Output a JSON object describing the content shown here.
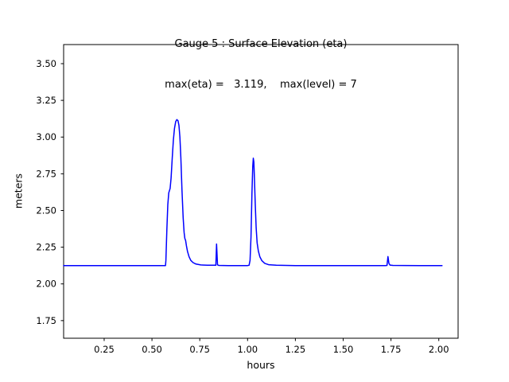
{
  "chart_data": {
    "type": "line",
    "title": "Gauge 5 : Surface Elevation (eta)",
    "subtitle": "max(eta) =   3.119,    max(level) = 7",
    "xlabel": "hours",
    "ylabel": "meters",
    "xlim": [
      0.038,
      2.101
    ],
    "ylim": [
      1.63,
      3.63
    ],
    "grid": false,
    "legend": null,
    "x_ticks": [
      {
        "value": 0.25,
        "label": "0.25"
      },
      {
        "value": 0.5,
        "label": "0.50"
      },
      {
        "value": 0.75,
        "label": "0.75"
      },
      {
        "value": 1.0,
        "label": "1.00"
      },
      {
        "value": 1.25,
        "label": "1.25"
      },
      {
        "value": 1.5,
        "label": "1.50"
      },
      {
        "value": 1.75,
        "label": "1.75"
      },
      {
        "value": 2.0,
        "label": "2.00"
      }
    ],
    "y_ticks": [
      {
        "value": 1.75,
        "label": "1.75"
      },
      {
        "value": 2.0,
        "label": "2.00"
      },
      {
        "value": 2.25,
        "label": "2.25"
      },
      {
        "value": 2.5,
        "label": "2.50"
      },
      {
        "value": 2.75,
        "label": "2.75"
      },
      {
        "value": 3.0,
        "label": "3.00"
      },
      {
        "value": 3.25,
        "label": "3.25"
      },
      {
        "value": 3.5,
        "label": "3.50"
      }
    ],
    "annotations": {
      "max_eta": 3.119,
      "max_level": 7,
      "baseline_meters": 2.125
    },
    "series": [
      {
        "name": "eta",
        "color": "#0000ff",
        "line_width": 1.5,
        "points": [
          [
            0.038,
            2.125
          ],
          [
            0.3,
            2.125
          ],
          [
            0.56,
            2.125
          ],
          [
            0.571,
            2.125
          ],
          [
            0.573,
            2.16
          ],
          [
            0.578,
            2.37
          ],
          [
            0.583,
            2.54
          ],
          [
            0.588,
            2.62
          ],
          [
            0.595,
            2.65
          ],
          [
            0.6,
            2.72
          ],
          [
            0.606,
            2.86
          ],
          [
            0.612,
            2.98
          ],
          [
            0.618,
            3.06
          ],
          [
            0.624,
            3.105
          ],
          [
            0.63,
            3.119
          ],
          [
            0.636,
            3.112
          ],
          [
            0.641,
            3.08
          ],
          [
            0.646,
            3.0
          ],
          [
            0.651,
            2.86
          ],
          [
            0.657,
            2.64
          ],
          [
            0.663,
            2.45
          ],
          [
            0.668,
            2.35
          ],
          [
            0.672,
            2.31
          ],
          [
            0.676,
            2.295
          ],
          [
            0.68,
            2.26
          ],
          [
            0.686,
            2.22
          ],
          [
            0.694,
            2.185
          ],
          [
            0.703,
            2.16
          ],
          [
            0.715,
            2.145
          ],
          [
            0.73,
            2.135
          ],
          [
            0.755,
            2.129
          ],
          [
            0.79,
            2.127
          ],
          [
            0.825,
            2.127
          ],
          [
            0.834,
            2.127
          ],
          [
            0.838,
            2.272
          ],
          [
            0.843,
            2.13
          ],
          [
            0.85,
            2.126
          ],
          [
            0.9,
            2.125
          ],
          [
            1.0,
            2.125
          ],
          [
            1.008,
            2.127
          ],
          [
            1.013,
            2.16
          ],
          [
            1.018,
            2.32
          ],
          [
            1.023,
            2.62
          ],
          [
            1.027,
            2.8
          ],
          [
            1.03,
            2.856
          ],
          [
            1.033,
            2.83
          ],
          [
            1.036,
            2.72
          ],
          [
            1.04,
            2.55
          ],
          [
            1.045,
            2.38
          ],
          [
            1.05,
            2.28
          ],
          [
            1.056,
            2.225
          ],
          [
            1.064,
            2.185
          ],
          [
            1.075,
            2.158
          ],
          [
            1.09,
            2.14
          ],
          [
            1.11,
            2.131
          ],
          [
            1.15,
            2.127
          ],
          [
            1.25,
            2.125
          ],
          [
            1.5,
            2.125
          ],
          [
            1.72,
            2.125
          ],
          [
            1.729,
            2.126
          ],
          [
            1.734,
            2.186
          ],
          [
            1.739,
            2.14
          ],
          [
            1.745,
            2.128
          ],
          [
            1.76,
            2.126
          ],
          [
            1.9,
            2.125
          ],
          [
            2.017,
            2.125
          ]
        ]
      }
    ]
  }
}
